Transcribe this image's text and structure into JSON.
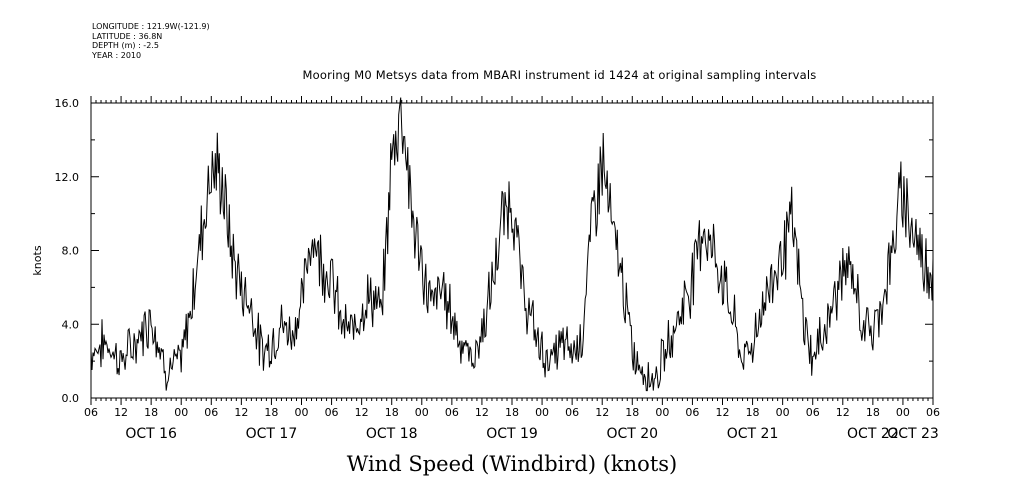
{
  "metadata": {
    "longitude": "LONGITUDE : 121.9W(-121.9)",
    "latitude": "LATITUDE : 36.8N",
    "depth": "DEPTH (m) : -2.5",
    "year": "YEAR : 2010"
  },
  "chart_data": {
    "type": "line",
    "title": "Mooring M0 Metsys data from MBARI instrument id 1424 at original sampling intervals",
    "bottom_title": "Wind Speed (Windbird) (knots)",
    "ylabel": "knots",
    "ylim": [
      0.0,
      16.0
    ],
    "yticks": [
      "0.0",
      "4.0",
      "8.0",
      "12.0",
      "16.0"
    ],
    "xlim_hours": [
      0,
      168
    ],
    "hour_ticks": [
      "06",
      "12",
      "18",
      "00",
      "06",
      "12",
      "18",
      "00",
      "06",
      "12",
      "18",
      "00",
      "06",
      "12",
      "18",
      "00",
      "06",
      "12",
      "18",
      "00",
      "06",
      "12",
      "18",
      "00",
      "06",
      "12",
      "18",
      "00",
      "06"
    ],
    "day_labels": [
      "OCT 16",
      "OCT 17",
      "OCT 18",
      "OCT 19",
      "OCT 20",
      "OCT 21",
      "OCT 22",
      "OCT 23"
    ],
    "series": [
      {
        "x_hours": [
          0,
          3,
          6,
          9,
          12,
          15,
          18,
          20,
          22,
          24,
          26,
          28,
          30,
          32,
          34,
          36,
          38,
          40,
          42,
          44,
          46,
          48,
          50,
          52,
          54,
          56,
          58,
          60,
          62,
          64,
          66,
          68,
          70,
          72,
          74,
          76,
          78,
          80,
          82,
          84,
          86,
          88,
          90,
          92,
          94,
          96,
          98,
          100,
          102,
          104,
          106,
          108,
          110,
          112,
          114,
          116,
          118,
          120,
          122,
          124,
          126,
          128,
          130,
          132,
          134,
          136,
          138,
          140,
          142,
          144,
          146,
          148,
          150,
          152,
          154,
          156,
          158,
          160,
          162,
          164,
          166,
          168
        ],
        "values": [
          2.5,
          3.0,
          2.0,
          3.0,
          4.5,
          1.5,
          2.0,
          5.0,
          9.0,
          12.5,
          12.0,
          8.0,
          6.0,
          5.0,
          2.5,
          3.0,
          4.0,
          3.5,
          5.0,
          9.0,
          7.5,
          6.5,
          4.0,
          3.5,
          5.0,
          5.5,
          4.5,
          13.0,
          16.2,
          10.0,
          7.0,
          5.0,
          6.0,
          4.5,
          3.0,
          2.0,
          3.5,
          6.0,
          9.5,
          11.0,
          6.0,
          4.0,
          2.5,
          2.0,
          3.0,
          2.5,
          3.5,
          9.5,
          13.0,
          9.0,
          6.5,
          2.5,
          1.5,
          1.0,
          2.0,
          3.5,
          5.0,
          6.5,
          9.5,
          8.0,
          6.5,
          4.5,
          2.0,
          3.0,
          5.0,
          6.5,
          8.0,
          9.5,
          4.5,
          2.0,
          3.5,
          5.0,
          7.0,
          6.5,
          4.0,
          3.5,
          5.5,
          8.0,
          11.5,
          9.0,
          7.5,
          7.0
        ]
      }
    ]
  }
}
